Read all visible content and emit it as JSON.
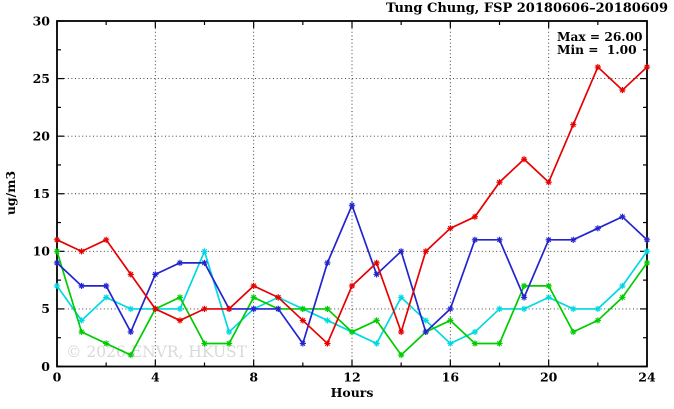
{
  "figure": {
    "title": "Tung Chung, FSP 20180606–20180609",
    "annotation": {
      "max_label": "Max = 26.00",
      "min_label": "Min =  1.00"
    },
    "watermark": "© 2026 ENVR, HKUST"
  },
  "chart_data": {
    "type": "line",
    "title": "Tung Chung, FSP 20180606–20180609",
    "xlabel": "Hours",
    "ylabel": "ug/m3",
    "xlim": [
      0,
      24
    ],
    "ylim": [
      0,
      30
    ],
    "grid": true,
    "legend": "none",
    "max_value": 26.0,
    "min_value": 1.0,
    "xticks_major": [
      0,
      4,
      8,
      12,
      16,
      20,
      24
    ],
    "xticks_minor": [
      2,
      6,
      10,
      14,
      18,
      22
    ],
    "yticks_major": [
      0,
      5,
      10,
      15,
      20,
      25,
      30
    ],
    "yticks_minor": [
      2.5,
      7.5,
      12.5,
      17.5,
      22.5,
      27.5
    ],
    "grid_x": [
      4,
      8,
      12,
      16,
      20
    ],
    "grid_y": [
      5,
      10,
      15,
      20,
      25
    ],
    "x": [
      0,
      1,
      2,
      3,
      4,
      5,
      6,
      7,
      8,
      9,
      10,
      11,
      12,
      13,
      14,
      15,
      16,
      17,
      18,
      19,
      20,
      21,
      22,
      23,
      24
    ],
    "series": [
      {
        "name": "cyan",
        "color": "#00d8e2",
        "values": [
          7,
          4,
          6,
          5,
          5,
          5,
          10,
          3,
          5,
          6,
          5,
          4,
          3,
          2,
          6,
          4,
          2,
          3,
          5,
          5,
          6,
          5,
          5,
          7,
          10
        ]
      },
      {
        "name": "green",
        "color": "#00cc00",
        "values": [
          10,
          3,
          2,
          1,
          5,
          6,
          2,
          2,
          6,
          5,
          5,
          5,
          3,
          4,
          1,
          3,
          4,
          2,
          2,
          7,
          7,
          3,
          4,
          6,
          9
        ]
      },
      {
        "name": "blue",
        "color": "#2424cf",
        "values": [
          9,
          7,
          7,
          3,
          8,
          9,
          9,
          5,
          5,
          5,
          2,
          9,
          14,
          8,
          10,
          3,
          5,
          11,
          11,
          6,
          11,
          11,
          12,
          13,
          11
        ]
      },
      {
        "name": "red",
        "color": "#e60000",
        "values": [
          11,
          10,
          11,
          8,
          5,
          4,
          5,
          5,
          7,
          6,
          4,
          2,
          7,
          9,
          3,
          10,
          12,
          13,
          16,
          18,
          16,
          21,
          26,
          24,
          26
        ]
      }
    ],
    "frame_color": "#000000",
    "watermark_color": "#d9d9d9"
  }
}
